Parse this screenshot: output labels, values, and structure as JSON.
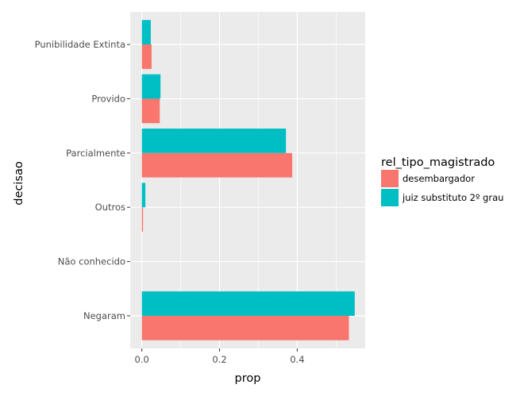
{
  "chart_data": {
    "type": "bar",
    "orientation": "horizontal",
    "position": "dodge",
    "xlabel": "prop",
    "ylabel": "decisao",
    "xlim": [
      -0.03,
      0.575
    ],
    "x_ticks": [
      0.0,
      0.2,
      0.4
    ],
    "x_tick_labels": [
      "0.0",
      "0.2",
      "0.4"
    ],
    "grid": true,
    "panel_background": "#ebebeb",
    "categories": [
      "Punibilidade Extinta",
      "Provido",
      "Parcialmente",
      "Outros",
      "Não conhecido",
      "Negaram"
    ],
    "legend": {
      "title": "rel_tipo_magistrado",
      "placement": "right"
    },
    "series": [
      {
        "name": "desembargador",
        "color": "#f8766d",
        "values": [
          0.025,
          0.046,
          0.387,
          0.003,
          0.0,
          0.533
        ]
      },
      {
        "name": "juiz substituto 2º grau",
        "color": "#00bfc4",
        "values": [
          0.023,
          0.048,
          0.371,
          0.009,
          0.0,
          0.548
        ]
      }
    ]
  }
}
